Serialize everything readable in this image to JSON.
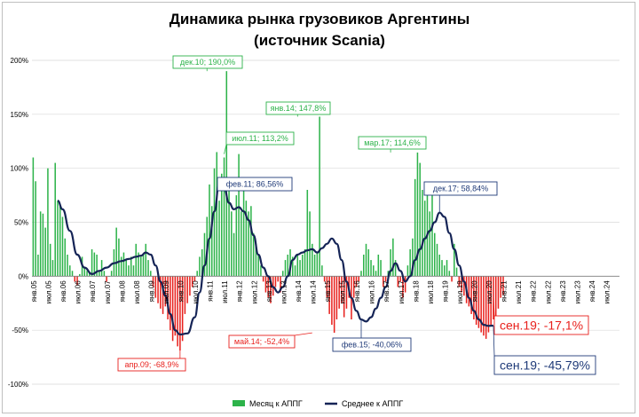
{
  "chart_data": {
    "type": "bar+line",
    "title_lines": [
      "Динамика рынка грузовиков Аргентины",
      "(источник Scania)"
    ],
    "ylim": [
      -100,
      200
    ],
    "y_ticks": [
      200,
      150,
      100,
      50,
      0,
      -50,
      -100
    ],
    "y_tick_labels": [
      "200%",
      "150%",
      "100%",
      "50%",
      "0%",
      "-50%",
      "-100%"
    ],
    "x_ticks": [
      "янв.05",
      "июл.05",
      "янв.06",
      "июл.06",
      "янв.07",
      "июл.07",
      "янв.08",
      "июл.08",
      "янв.09",
      "июл.09",
      "янв.10",
      "июл.10",
      "янв.11",
      "июл.11",
      "янв.12",
      "июл.12",
      "янв.13",
      "июл.13",
      "янв.14",
      "июл.14",
      "янв.15",
      "июл.15",
      "янв.16",
      "июл.16",
      "янв.17",
      "июл.17",
      "янв.18",
      "июл.18",
      "янв.19",
      "июл.19",
      "янв.20",
      "июл.20",
      "янв.21",
      "июл.21",
      "янв.22",
      "июл.22",
      "янв.23",
      "июл.23",
      "янв.24",
      "июл.24"
    ],
    "months_total": 240,
    "legend": [
      "Месяц к АППГ",
      "Среднее к АППГ"
    ],
    "legend_position": "bottom",
    "colors": {
      "positive": "#2db34a",
      "negative": "#e8211d",
      "line": "#152456",
      "ann_pos": "#2db34a",
      "ann_neg": "#e8211d",
      "ann_avg": "#1f3a78"
    },
    "series": [
      {
        "name": "Месяц к АППГ",
        "type": "bar",
        "values": [
          110,
          88,
          20,
          60,
          58,
          45,
          100,
          30,
          15,
          105,
          70,
          65,
          55,
          35,
          20,
          10,
          5,
          -5,
          -8,
          2,
          18,
          8,
          5,
          3,
          25,
          22,
          20,
          5,
          15,
          5,
          -5,
          0,
          5,
          25,
          45,
          35,
          18,
          22,
          15,
          10,
          18,
          10,
          30,
          22,
          18,
          20,
          30,
          15,
          5,
          -10,
          -20,
          -25,
          -30,
          -35,
          -28,
          -40,
          -50,
          -60,
          -55,
          -65,
          -68.9,
          -60,
          -35,
          -25,
          -18,
          -10,
          -5,
          5,
          18,
          25,
          40,
          55,
          85,
          65,
          100,
          115,
          70,
          95,
          110,
          190,
          80,
          60,
          40,
          75,
          113.2,
          60,
          90,
          70,
          60,
          65,
          40,
          30,
          20,
          10,
          -5,
          -15,
          -20,
          -25,
          -18,
          -10,
          -5,
          -15,
          5,
          15,
          20,
          25,
          18,
          10,
          20,
          15,
          20,
          25,
          80,
          60,
          30,
          20,
          22,
          147.8,
          10,
          -5,
          -20,
          -35,
          -45,
          -52.4,
          -40,
          -30,
          -25,
          -38,
          -30,
          -20,
          -40,
          -20,
          -10,
          -5,
          5,
          20,
          30,
          25,
          15,
          10,
          5,
          20,
          15,
          -10,
          -5,
          5,
          25,
          35,
          15,
          -10,
          -5,
          -20,
          -15,
          10,
          25,
          35,
          90,
          114.6,
          105,
          80,
          70,
          85,
          60,
          75,
          40,
          30,
          20,
          15,
          10,
          15,
          5,
          -5,
          30,
          8,
          -10,
          -15,
          -18,
          -25,
          -28,
          -35,
          -40,
          -45,
          -48,
          -52,
          -55,
          -58,
          -52,
          -45,
          -40,
          -38,
          -30,
          -20,
          -17.1
        ]
      },
      {
        "name": "Среднее к АППГ",
        "type": "line",
        "points": [
          [
            10,
            70
          ],
          [
            12,
            62
          ],
          [
            15,
            42
          ],
          [
            18,
            20
          ],
          [
            21,
            8
          ],
          [
            24,
            2
          ],
          [
            27,
            5
          ],
          [
            30,
            8
          ],
          [
            33,
            12
          ],
          [
            36,
            14
          ],
          [
            39,
            16
          ],
          [
            42,
            18
          ],
          [
            44,
            19
          ],
          [
            46,
            22
          ],
          [
            48,
            20
          ],
          [
            50,
            10
          ],
          [
            52,
            -5
          ],
          [
            54,
            -18
          ],
          [
            56,
            -35
          ],
          [
            58,
            -50
          ],
          [
            60,
            -54
          ],
          [
            63,
            -53
          ],
          [
            66,
            -38
          ],
          [
            68,
            -15
          ],
          [
            70,
            10
          ],
          [
            72,
            35
          ],
          [
            74,
            60
          ],
          [
            76,
            86.56
          ],
          [
            78,
            82
          ],
          [
            80,
            68
          ],
          [
            82,
            62
          ],
          [
            84,
            64
          ],
          [
            86,
            60
          ],
          [
            88,
            52
          ],
          [
            90,
            38
          ],
          [
            92,
            20
          ],
          [
            94,
            8
          ],
          [
            96,
            0
          ],
          [
            98,
            -10
          ],
          [
            100,
            -15
          ],
          [
            102,
            -10
          ],
          [
            104,
            0
          ],
          [
            106,
            15
          ],
          [
            108,
            20
          ],
          [
            110,
            22
          ],
          [
            112,
            24
          ],
          [
            114,
            25
          ],
          [
            116,
            22
          ],
          [
            118,
            26
          ],
          [
            120,
            30
          ],
          [
            122,
            35
          ],
          [
            124,
            30
          ],
          [
            126,
            15
          ],
          [
            128,
            -5
          ],
          [
            130,
            -20
          ],
          [
            132,
            -32
          ],
          [
            134,
            -40.06
          ],
          [
            136,
            -42
          ],
          [
            138,
            -38
          ],
          [
            140,
            -30
          ],
          [
            142,
            -20
          ],
          [
            144,
            -10
          ],
          [
            146,
            5
          ],
          [
            148,
            12
          ],
          [
            150,
            5
          ],
          [
            152,
            -5
          ],
          [
            154,
            0
          ],
          [
            156,
            15
          ],
          [
            158,
            25
          ],
          [
            160,
            35
          ],
          [
            162,
            42
          ],
          [
            164,
            50
          ],
          [
            166,
            58.84
          ],
          [
            168,
            55
          ],
          [
            170,
            40
          ],
          [
            172,
            25
          ],
          [
            174,
            10
          ],
          [
            176,
            -5
          ],
          [
            178,
            -20
          ],
          [
            180,
            -32
          ],
          [
            182,
            -40
          ],
          [
            184,
            -45
          ],
          [
            186,
            -46
          ],
          [
            188,
            -45.79
          ]
        ]
      }
    ],
    "annotations": [
      {
        "text": "дек.10; 190,0%",
        "kind": "pos"
      },
      {
        "text": "янв.14; 147,8%",
        "kind": "pos"
      },
      {
        "text": "июл.11; 113,2%",
        "kind": "pos"
      },
      {
        "text": "мар.17; 114,6%",
        "kind": "pos"
      },
      {
        "text": "фев.11; 86,56%",
        "kind": "avg"
      },
      {
        "text": "дек.17; 58,84%",
        "kind": "avg"
      },
      {
        "text": "апр.09; -68,9%",
        "kind": "neg"
      },
      {
        "text": "май.14; -52,4%",
        "kind": "neg"
      },
      {
        "text": "фев.15; -40,06%",
        "kind": "avg"
      },
      {
        "text": "сен.19; -17,1%",
        "kind": "neg_big"
      },
      {
        "text": "сен.19; -45,79%",
        "kind": "avg_big"
      }
    ]
  }
}
